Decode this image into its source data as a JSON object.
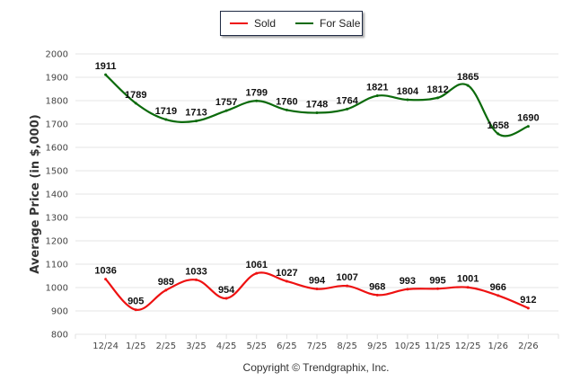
{
  "chart_data": {
    "type": "line",
    "title": "",
    "xlabel": "",
    "ylabel": "Average Price (in $,000)",
    "categories": [
      "12/24",
      "1/25",
      "2/25",
      "3/25",
      "4/25",
      "5/25",
      "6/25",
      "7/25",
      "8/25",
      "9/25",
      "10/25",
      "11/25",
      "12/25",
      "1/26",
      "2/26"
    ],
    "ylim": [
      800,
      2000
    ],
    "yticks": [
      800,
      900,
      1000,
      1100,
      1200,
      1300,
      1400,
      1500,
      1600,
      1700,
      1800,
      1900,
      2000
    ],
    "grid": true,
    "legend_position": "top-center",
    "series": [
      {
        "name": "Sold",
        "color": "#ee1111",
        "values": [
          1036,
          905,
          989,
          1033,
          954,
          1061,
          1027,
          994,
          1007,
          968,
          993,
          995,
          1001,
          966,
          912
        ]
      },
      {
        "name": "For Sale",
        "color": "#0b6a0b",
        "values": [
          1911,
          1789,
          1719,
          1713,
          1757,
          1799,
          1760,
          1748,
          1764,
          1821,
          1804,
          1812,
          1865,
          1658,
          1690
        ]
      }
    ],
    "footer": "Copyright © Trendgraphix, Inc."
  },
  "legend": {
    "items": [
      {
        "label": "Sold",
        "color": "#ee1111"
      },
      {
        "label": "For Sale",
        "color": "#0b6a0b"
      }
    ]
  }
}
